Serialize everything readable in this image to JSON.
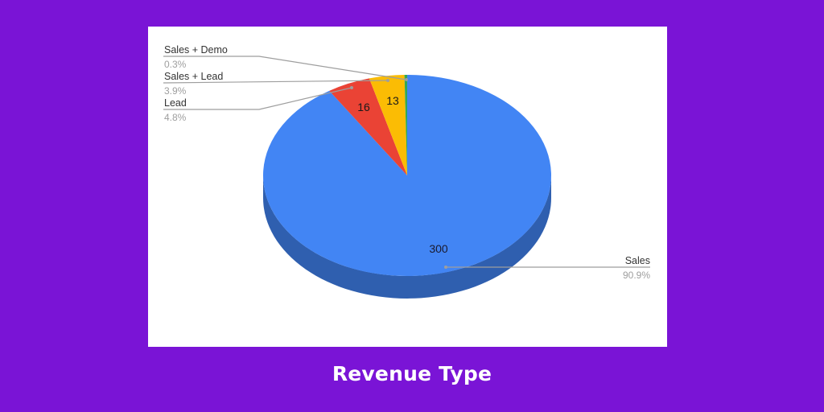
{
  "caption": "Revenue Type",
  "colors": {
    "background": "#7a14d6",
    "card": "#ffffff",
    "sales": "#4285f4",
    "sales_side": "#2f5faf",
    "lead": "#ea4335",
    "sales_lead": "#fbbc04",
    "sales_demo": "#34a853",
    "leader": "#9e9e9e",
    "label": "#333333",
    "percent": "#9e9e9e"
  },
  "chart_data": {
    "type": "pie",
    "title": "Revenue Type",
    "style": "3d",
    "legend_position": "labeled",
    "categories": [
      "Sales",
      "Lead",
      "Sales + Lead",
      "Sales + Demo"
    ],
    "values": [
      300,
      16,
      13,
      1
    ],
    "percentages": [
      "90.9%",
      "4.8%",
      "3.9%",
      "0.3%"
    ],
    "slice_labels": [
      "300",
      "16",
      "13",
      ""
    ]
  },
  "labels": {
    "sales_demo": {
      "name": "Sales + Demo",
      "pct": "0.3%"
    },
    "sales_lead": {
      "name": "Sales + Lead",
      "pct": "3.9%"
    },
    "lead": {
      "name": "Lead",
      "pct": "4.8%"
    },
    "sales": {
      "name": "Sales",
      "pct": "90.9%"
    }
  },
  "slice_values": {
    "sales": "300",
    "lead": "16",
    "sales_lead": "13"
  }
}
